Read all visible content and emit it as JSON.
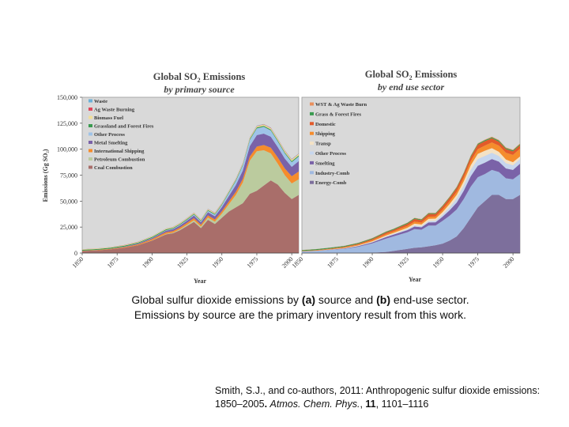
{
  "caption": {
    "pre": "Global sulfur dioxide emissions by ",
    "a": "(a)",
    "mid": " source and ",
    "b": "(b)",
    "post": " end-use sector.",
    "line2": "Emissions by source are the primary inventory result from this work."
  },
  "citation": {
    "authors": "Smith, S.J., and co-authors, 2011: Anthropogenic sulfur dioxide emissions: 1850–2005",
    "sep": ". ",
    "journal": "Atmos. Chem. Phys.",
    "comma": ", ",
    "volume": "11",
    "pages": ", 1101–1116"
  },
  "chart_data": [
    {
      "type": "area",
      "stacked": true,
      "title_prefix": "Global SO",
      "title_sub": "2",
      "title_suffix": " Emissions",
      "subtitle": "by primary source",
      "xlabel": "Year",
      "ylabel": "Emissions (Gg SO₂)",
      "ylim": [
        0,
        150000
      ],
      "yticks": [
        "0",
        "25,000",
        "50,000",
        "75,000",
        "100,000",
        "125,000",
        "150,000"
      ],
      "xlim": [
        1850,
        2005
      ],
      "xticks": [
        "1850",
        "1875",
        "1900",
        "1925",
        "1950",
        "1975",
        "2000"
      ],
      "legend_position": "top-left",
      "x": [
        1850,
        1860,
        1870,
        1880,
        1890,
        1900,
        1910,
        1915,
        1920,
        1925,
        1930,
        1935,
        1940,
        1945,
        1950,
        1955,
        1960,
        1965,
        1970,
        1975,
        1980,
        1985,
        1990,
        1995,
        2000,
        2005
      ],
      "series": [
        {
          "name": "Coal Combustion",
          "color": "#a96e6a",
          "values": [
            2000,
            2500,
            3500,
            5000,
            7500,
            12000,
            18000,
            19000,
            22000,
            26000,
            30000,
            24000,
            32000,
            28000,
            34000,
            40000,
            44000,
            48000,
            57000,
            60000,
            65000,
            70000,
            66000,
            58000,
            52000,
            56000
          ]
        },
        {
          "name": "Petroleum Combustion",
          "color": "#bbcb9e",
          "values": [
            0,
            0,
            0,
            0,
            0,
            200,
            500,
            600,
            900,
            1200,
            1600,
            1500,
            2200,
            2300,
            4000,
            7000,
            12000,
            20000,
            32000,
            38000,
            34000,
            26000,
            20000,
            17000,
            15000,
            15000
          ]
        },
        {
          "name": "International Shipping",
          "color": "#f58c2c",
          "values": [
            300,
            400,
            500,
            700,
            900,
            1200,
            1500,
            1500,
            1700,
            1800,
            2000,
            1800,
            2100,
            2000,
            2300,
            2700,
            3000,
            3500,
            4000,
            4500,
            5000,
            5500,
            6000,
            6500,
            7000,
            7500
          ]
        },
        {
          "name": "Metal Smelting",
          "color": "#7a62a8",
          "values": [
            0,
            100,
            200,
            400,
            700,
            1000,
            1500,
            1700,
            1900,
            2100,
            2500,
            2300,
            3000,
            3100,
            4000,
            5200,
            6500,
            8000,
            10000,
            11000,
            11000,
            10500,
            10000,
            9500,
            9000,
            10000
          ]
        },
        {
          "name": "Other Process",
          "color": "#9fc3e8",
          "values": [
            0,
            0,
            0,
            100,
            200,
            300,
            500,
            600,
            700,
            800,
            1000,
            1000,
            1300,
            1500,
            2000,
            3000,
            4000,
            5000,
            6000,
            6500,
            6500,
            6000,
            5500,
            5000,
            4500,
            4500
          ]
        },
        {
          "name": "Grassland and Forest Fires",
          "color": "#3a9a50",
          "values": [
            800,
            800,
            800,
            800,
            800,
            800,
            800,
            800,
            800,
            800,
            800,
            800,
            800,
            800,
            800,
            800,
            900,
            900,
            1000,
            1000,
            1000,
            1000,
            1000,
            1000,
            1000,
            1000
          ]
        },
        {
          "name": "Biomass Fuel",
          "color": "#f1df9a",
          "values": [
            400,
            450,
            500,
            550,
            600,
            650,
            700,
            720,
            750,
            780,
            800,
            830,
            850,
            880,
            900,
            950,
            1000,
            1050,
            1100,
            1150,
            1200,
            1250,
            1300,
            1350,
            1400,
            1450
          ]
        },
        {
          "name": "Ag Waste Burning",
          "color": "#e0465a",
          "values": [
            100,
            100,
            120,
            120,
            130,
            140,
            150,
            160,
            170,
            180,
            190,
            200,
            210,
            220,
            230,
            240,
            250,
            260,
            270,
            280,
            290,
            300,
            310,
            320,
            330,
            340
          ]
        },
        {
          "name": "Waste",
          "color": "#6bb0d8",
          "values": [
            50,
            50,
            60,
            60,
            70,
            80,
            90,
            100,
            100,
            110,
            120,
            130,
            140,
            150,
            160,
            170,
            180,
            190,
            200,
            210,
            220,
            230,
            240,
            250,
            260,
            270
          ]
        }
      ]
    },
    {
      "type": "area",
      "stacked": true,
      "title_prefix": "Global SO",
      "title_sub": "2",
      "title_suffix": " Emissions",
      "subtitle": "by end use sector",
      "xlabel": "Year",
      "ylim": [
        0,
        150000
      ],
      "xlim": [
        1850,
        2005
      ],
      "xticks": [
        "1850",
        "1875",
        "1900",
        "1925",
        "1950",
        "1975",
        "2000"
      ],
      "legend_position": "top-left",
      "x": [
        1850,
        1860,
        1870,
        1880,
        1890,
        1900,
        1910,
        1915,
        1920,
        1925,
        1930,
        1935,
        1940,
        1945,
        1950,
        1955,
        1960,
        1965,
        1970,
        1975,
        1980,
        1985,
        1990,
        1995,
        2000,
        2005
      ],
      "series": [
        {
          "name": "Energy-Comb",
          "color": "#7d6f9c",
          "values": [
            0,
            0,
            0,
            0,
            0,
            300,
            1000,
            2000,
            3000,
            4000,
            5000,
            5500,
            6500,
            7500,
            9000,
            12000,
            16000,
            24000,
            34000,
            44000,
            50000,
            56000,
            56000,
            52000,
            52000,
            56000
          ]
        },
        {
          "name": "Industry-Comb",
          "color": "#a0b9e0",
          "values": [
            1500,
            2000,
            3000,
            4000,
            6000,
            9000,
            13000,
            14000,
            15000,
            16000,
            18000,
            17000,
            20000,
            19000,
            22000,
            24000,
            26000,
            28000,
            30000,
            29000,
            26000,
            24000,
            22000,
            20000,
            19000,
            20000
          ]
        },
        {
          "name": "Smelting",
          "color": "#7a62a8",
          "values": [
            0,
            100,
            200,
            400,
            700,
            1000,
            1500,
            1700,
            1900,
            2100,
            2500,
            2300,
            3000,
            3100,
            4000,
            5200,
            6500,
            8000,
            10000,
            11000,
            11000,
            10500,
            10000,
            9500,
            9000,
            10000
          ]
        },
        {
          "name": "Other Process",
          "color": "#c6d6ee",
          "values": [
            0,
            0,
            0,
            100,
            200,
            300,
            500,
            600,
            700,
            800,
            1000,
            1000,
            1300,
            1500,
            2000,
            3000,
            4000,
            5000,
            6000,
            6500,
            6500,
            6000,
            5500,
            5000,
            4500,
            4500
          ]
        },
        {
          "name": "Transp",
          "color": "#f4e2c4",
          "values": [
            0,
            100,
            200,
            300,
            400,
            600,
            900,
            1000,
            1200,
            1500,
            1800,
            1700,
            2100,
            2000,
            2500,
            3000,
            3500,
            4000,
            4500,
            5000,
            5000,
            4500,
            4000,
            3500,
            3000,
            2500
          ]
        },
        {
          "name": "Shipping",
          "color": "#f58c2c",
          "values": [
            300,
            400,
            500,
            700,
            900,
            1200,
            1500,
            1500,
            1700,
            1800,
            2000,
            1800,
            2100,
            2000,
            2300,
            2700,
            3000,
            3500,
            4000,
            4500,
            5000,
            5500,
            6000,
            6500,
            7000,
            7500
          ]
        },
        {
          "name": "Domestic",
          "color": "#e25a2a",
          "values": [
            200,
            300,
            400,
            500,
            700,
            1000,
            1500,
            1500,
            1800,
            2000,
            2500,
            2300,
            2600,
            2500,
            3000,
            3300,
            3500,
            3700,
            4000,
            4200,
            4200,
            4000,
            3800,
            3600,
            3400,
            3400
          ]
        },
        {
          "name": "Grass & Forest Fires",
          "color": "#3a9a50",
          "values": [
            800,
            800,
            800,
            800,
            800,
            800,
            800,
            800,
            800,
            800,
            800,
            800,
            800,
            800,
            800,
            800,
            900,
            900,
            1000,
            1000,
            1000,
            1000,
            1000,
            1000,
            1000,
            1000
          ]
        },
        {
          "name": "WST & Ag Waste Burn",
          "color": "#e98f5c",
          "values": [
            150,
            150,
            180,
            180,
            200,
            220,
            240,
            260,
            270,
            290,
            310,
            330,
            350,
            370,
            390,
            410,
            430,
            450,
            470,
            490,
            510,
            530,
            550,
            570,
            590,
            610
          ]
        }
      ]
    }
  ]
}
